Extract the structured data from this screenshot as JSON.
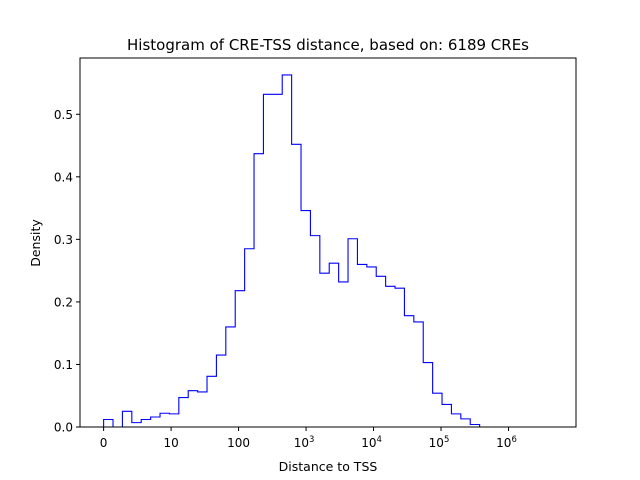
{
  "chart_data": {
    "type": "histogram-step",
    "title": "Histogram of CRE-TSS distance, based on: 6189 CREs",
    "xlabel": "Distance to TSS",
    "ylabel": "Density",
    "x_scale": "log10 (symlog-style, 0 at left)",
    "xlim": [
      -0.35,
      7.0
    ],
    "ylim": [
      0,
      0.59
    ],
    "x_ticks": [
      {
        "pos": 0,
        "base": "0",
        "sup": ""
      },
      {
        "pos": 1,
        "base": "10",
        "sup": ""
      },
      {
        "pos": 2,
        "base": "100",
        "sup": ""
      },
      {
        "pos": 3,
        "base": "10",
        "sup": "3"
      },
      {
        "pos": 4,
        "base": "10",
        "sup": "4"
      },
      {
        "pos": 5,
        "base": "10",
        "sup": "5"
      },
      {
        "pos": 6,
        "base": "10",
        "sup": "6"
      }
    ],
    "y_ticks": [
      0.0,
      0.1,
      0.2,
      0.3,
      0.4,
      0.5
    ],
    "bin_start": 0.0,
    "bin_width": 0.1393,
    "densities": [
      0.012,
      0.0,
      0.025,
      0.007,
      0.012,
      0.016,
      0.022,
      0.021,
      0.047,
      0.058,
      0.056,
      0.081,
      0.115,
      0.16,
      0.218,
      0.285,
      0.437,
      0.532,
      0.532,
      0.563,
      0.452,
      0.346,
      0.306,
      0.246,
      0.262,
      0.232,
      0.301,
      0.26,
      0.256,
      0.241,
      0.225,
      0.222,
      0.178,
      0.168,
      0.103,
      0.054,
      0.036,
      0.021,
      0.013,
      0.004,
      0.0,
      0.0,
      0.0,
      0.0,
      0.0,
      0.0,
      0.0,
      0.0,
      0.0,
      0.0
    ],
    "line_color": "#0000ff",
    "grid": false
  }
}
